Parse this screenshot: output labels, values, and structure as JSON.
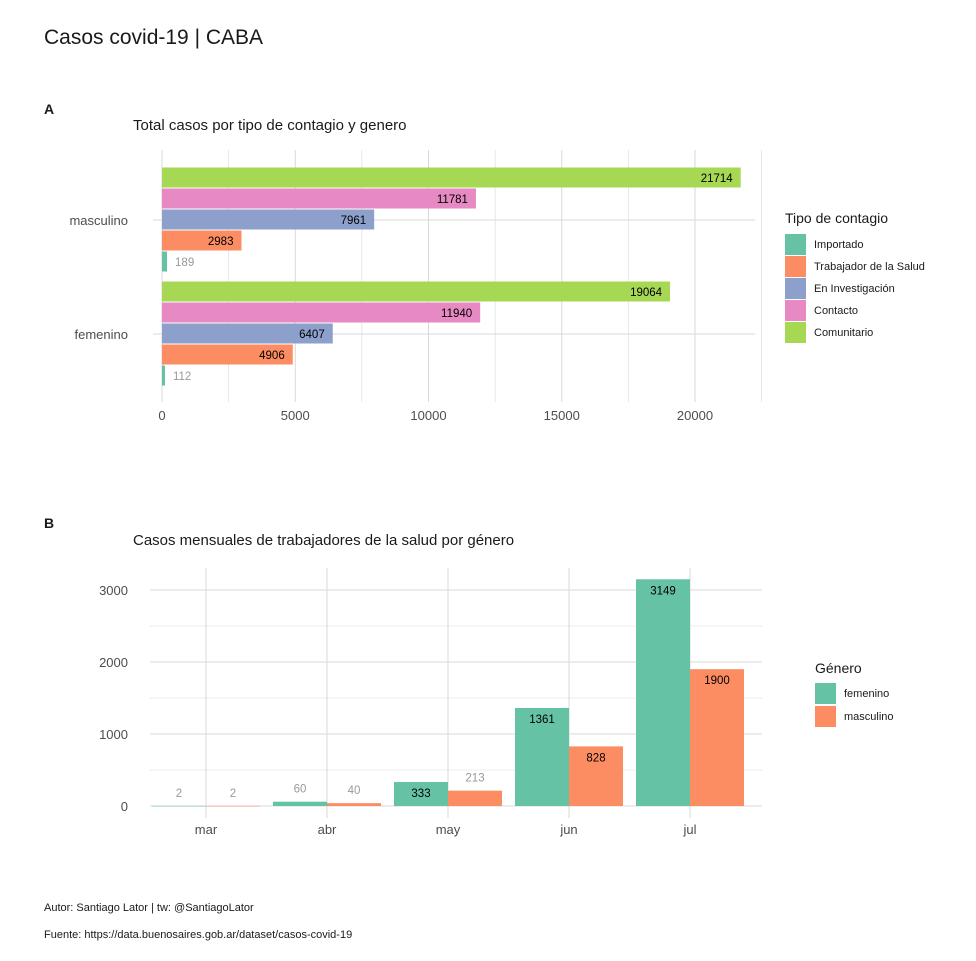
{
  "title": "Casos covid-19 | CABA",
  "caption": {
    "author": "Autor: Santiago Lator | tw: @SantiagoLator",
    "source": "Fuente: https://data.buenosaires.gob.ar/dataset/casos-covid-19"
  },
  "chart_data": [
    {
      "tag": "A",
      "type": "bar",
      "orientation": "horizontal",
      "title": "Total casos por tipo de contagio y genero",
      "categories": [
        "masculino",
        "femenino"
      ],
      "series": [
        {
          "name": "Importado",
          "color": "#66c2a5",
          "values": [
            189,
            112
          ]
        },
        {
          "name": "Trabajador de la Salud",
          "color": "#fc8d62",
          "values": [
            2983,
            4906
          ]
        },
        {
          "name": "En Investigación",
          "color": "#8da0cb",
          "values": [
            7961,
            6407
          ]
        },
        {
          "name": "Contacto",
          "color": "#e78ac3",
          "values": [
            11781,
            11940
          ]
        },
        {
          "name": "Comunitario",
          "color": "#a6d854",
          "values": [
            21714,
            19064
          ]
        }
      ],
      "legend_title": "Tipo de contagio",
      "legend_position": "right",
      "xlim": [
        0,
        22500
      ],
      "xticks": [
        "0",
        "5000",
        "10000",
        "15000",
        "20000"
      ],
      "grid": true
    },
    {
      "tag": "B",
      "type": "bar",
      "title": "Casos mensuales de trabajadores de la salud por género",
      "categories": [
        "mar",
        "abr",
        "may",
        "jun",
        "jul"
      ],
      "series": [
        {
          "name": "femenino",
          "color": "#66c2a5",
          "values": [
            2,
            60,
            333,
            1361,
            3149
          ]
        },
        {
          "name": "masculino",
          "color": "#fc8d62",
          "values": [
            2,
            40,
            213,
            828,
            1900
          ]
        }
      ],
      "legend_title": "Género",
      "legend_position": "right",
      "ylim": [
        0,
        3300
      ],
      "yticks": [
        "0",
        "1000",
        "2000",
        "3000"
      ],
      "grid": true
    }
  ]
}
